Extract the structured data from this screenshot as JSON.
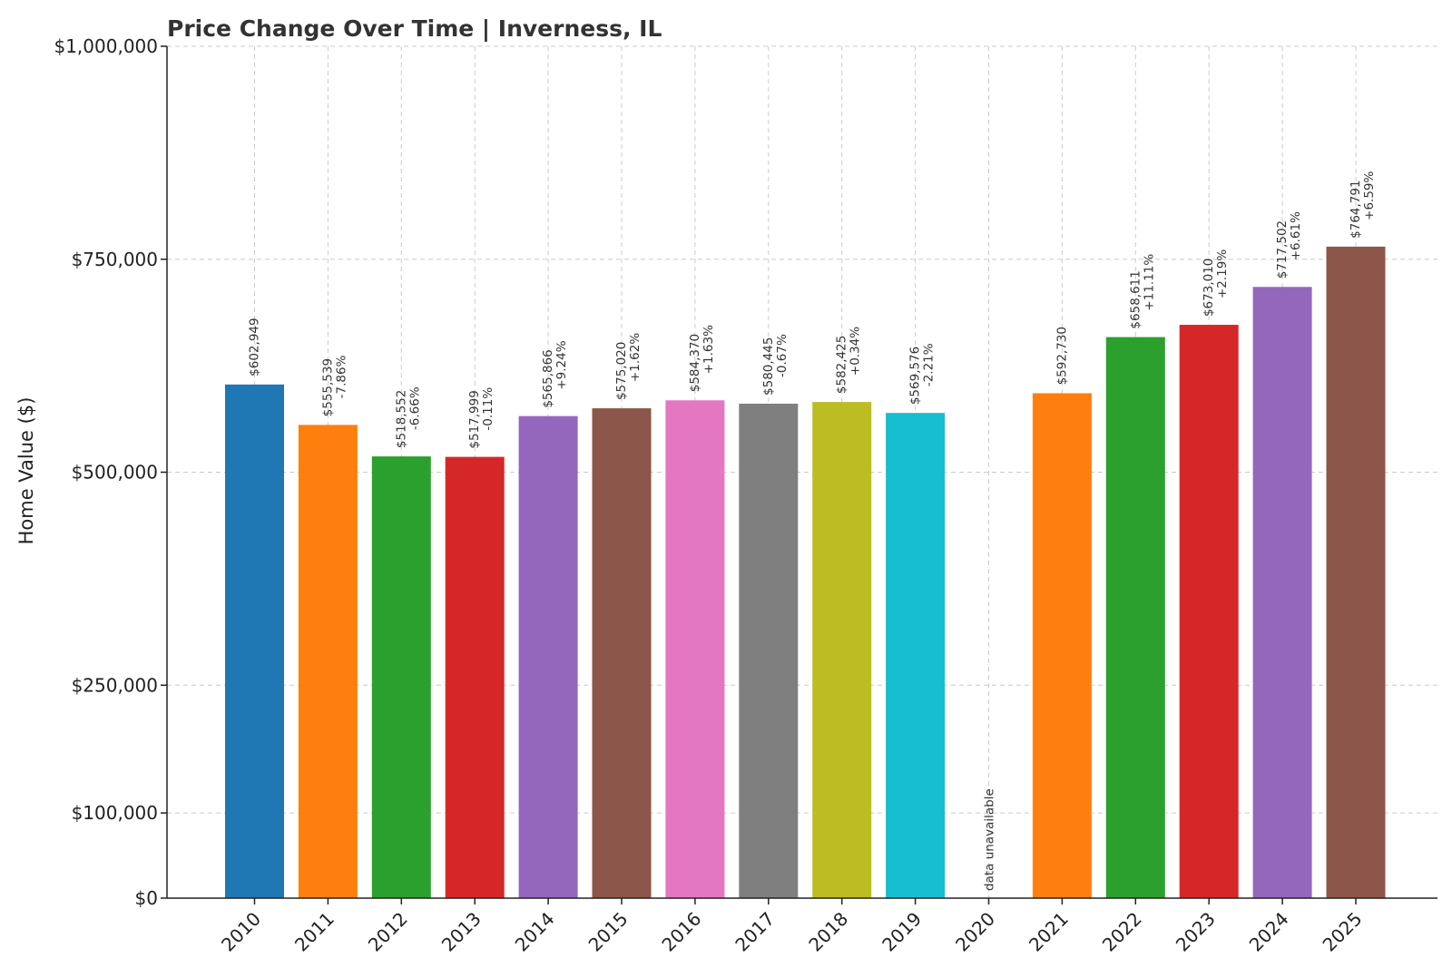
{
  "chart_data": {
    "type": "bar",
    "title": "Price Change Over Time | Inverness, IL",
    "xlabel": "",
    "ylabel": "Home Value ($)",
    "ylim": [
      0,
      1000000
    ],
    "yticks": [
      0,
      100000,
      250000,
      500000,
      750000,
      1000000
    ],
    "ytick_labels": [
      "$0",
      "$100,000",
      "$250,000",
      "$500,000",
      "$750,000",
      "$1,000,000"
    ],
    "grid": true,
    "categories": [
      "2010",
      "2011",
      "2012",
      "2013",
      "2014",
      "2015",
      "2016",
      "2017",
      "2018",
      "2019",
      "2020",
      "2021",
      "2022",
      "2023",
      "2024",
      "2025"
    ],
    "values": [
      602949,
      555539,
      518552,
      517999,
      565866,
      575020,
      584370,
      580445,
      582425,
      569576,
      null,
      592730,
      658611,
      673010,
      717502,
      764791
    ],
    "value_labels": [
      "$602,949",
      "$555,539",
      "$518,552",
      "$517,999",
      "$565,866",
      "$575,020",
      "$584,370",
      "$580,445",
      "$582,425",
      "$569,576",
      "",
      "$592,730",
      "$658,611",
      "$673,010",
      "$717,502",
      "$764,791"
    ],
    "change_labels": [
      "",
      "-7.86%",
      "-6.66%",
      "-0.11%",
      "+9.24%",
      "+1.62%",
      "+1.63%",
      "-0.67%",
      "+0.34%",
      "-2.21%",
      "",
      "",
      "+11.11%",
      "+2.19%",
      "+6.61%",
      "+6.59%"
    ],
    "missing_label": "data unavailable",
    "colors": [
      "#1f77b4",
      "#ff7f0e",
      "#2ca02c",
      "#d62728",
      "#9467bd",
      "#8c564b",
      "#e377c2",
      "#7f7f7f",
      "#bcbd22",
      "#17becf",
      "#1f77b4",
      "#ff7f0e",
      "#2ca02c",
      "#d62728",
      "#9467bd",
      "#8c564b"
    ]
  }
}
